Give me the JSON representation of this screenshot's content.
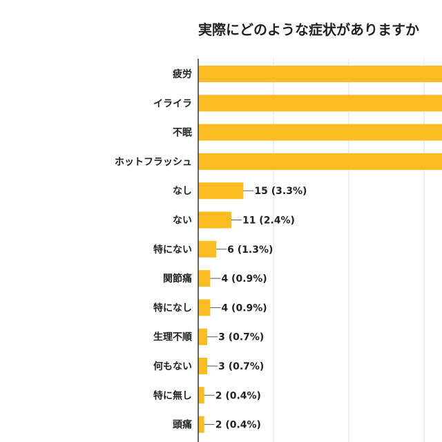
{
  "chart_data": {
    "type": "bar",
    "orientation": "horizontal",
    "title": "実際にどのような症状がありますか",
    "categories": [
      "疲労",
      "イライラ",
      "不眠",
      "ホットフラッシュ",
      "なし",
      "ない",
      "特にない",
      "関節痛",
      "特になし",
      "生理不順",
      "何もない",
      "特に無し",
      "頭痛"
    ],
    "values": [
      null,
      null,
      null,
      null,
      15,
      11,
      6,
      4,
      4,
      3,
      3,
      2,
      2
    ],
    "data_labels": [
      "",
      "",
      "",
      "",
      "15 (3.3%)",
      "11 (2.4%)",
      "6 (1.3%)",
      "4 (0.9%)",
      "4 (0.9%)",
      "3 (0.7%)",
      "3 (0.7%)",
      "2 (0.4%)",
      "2 (0.4%)"
    ],
    "grid": true,
    "grid_step": 25,
    "bar_color": "#fbbc22",
    "note_cropped": false
  }
}
